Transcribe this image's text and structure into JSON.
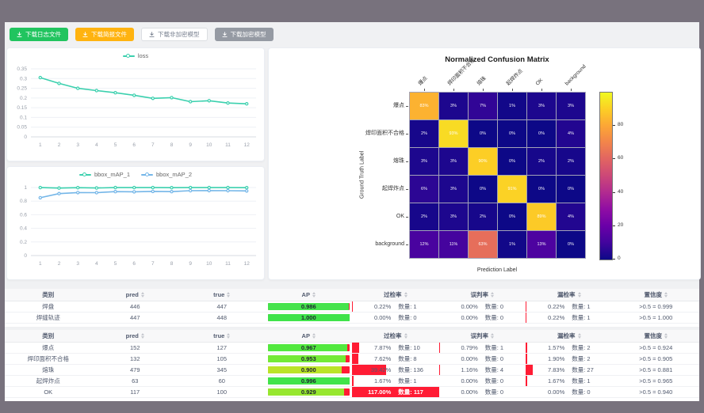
{
  "toolbar": {
    "buttons": [
      {
        "label": "下载日志文件",
        "variant": "green"
      },
      {
        "label": "下载简报文件",
        "variant": "orange"
      },
      {
        "label": "下载非加密模型",
        "variant": "plain"
      },
      {
        "label": "下载加密模型",
        "variant": "gray"
      }
    ]
  },
  "colors": {
    "accent_teal": "#3bd0ae",
    "accent_blue": "#74b6e8",
    "button_green": "#21c45f",
    "button_orange": "#ffb310",
    "bar_red": "#ff1c34",
    "frame_gray": "#78727d"
  },
  "chart_data": [
    {
      "type": "line",
      "legend_position": "top",
      "x": [
        1,
        2,
        3,
        4,
        5,
        6,
        7,
        8,
        9,
        10,
        11,
        12
      ],
      "series": [
        {
          "name": "loss",
          "color": "#3bd0ae",
          "values": [
            0.305,
            0.275,
            0.25,
            0.238,
            0.227,
            0.214,
            0.198,
            0.202,
            0.181,
            0.186,
            0.174,
            0.17
          ]
        }
      ],
      "ylim": [
        0,
        0.35
      ],
      "yticks": [
        0,
        0.05,
        0.1,
        0.15,
        0.2,
        0.25,
        0.3,
        0.35
      ],
      "grid": true
    },
    {
      "type": "line",
      "legend_position": "top",
      "x": [
        1,
        2,
        3,
        4,
        5,
        6,
        7,
        8,
        9,
        10,
        11,
        12
      ],
      "series": [
        {
          "name": "bbox_mAP_1",
          "color": "#3bd0ae",
          "values": [
            0.999,
            0.992,
            0.998,
            0.993,
            0.999,
            0.999,
            0.999,
            0.998,
            0.999,
            0.999,
            0.999,
            0.998
          ]
        },
        {
          "name": "bbox_mAP_2",
          "color": "#74b6e8",
          "values": [
            0.85,
            0.91,
            0.925,
            0.924,
            0.94,
            0.937,
            0.943,
            0.94,
            0.953,
            0.955,
            0.954,
            0.95
          ]
        }
      ],
      "ylim": [
        0,
        1
      ],
      "yticks": [
        0,
        0.2,
        0.4,
        0.6,
        0.8,
        1
      ],
      "grid": true
    },
    {
      "type": "heatmap",
      "title": "Normalized Confusion Matrix",
      "xlabel": "Prediction Label",
      "ylabel": "Ground Truth Label",
      "labels": [
        "爆点",
        "焊印面积不合格",
        "熔珠",
        "起焊炸点",
        "OK",
        "background"
      ],
      "matrix": [
        [
          83,
          3,
          7,
          1,
          3,
          3
        ],
        [
          2,
          93,
          0,
          0,
          0,
          4
        ],
        [
          3,
          3,
          90,
          0,
          2,
          2
        ],
        [
          6,
          3,
          0,
          91,
          0,
          0
        ],
        [
          2,
          3,
          2,
          0,
          89,
          4
        ],
        [
          12,
          11,
          63,
          1,
          13,
          0
        ]
      ],
      "cell_format": "percent",
      "vmin": 0,
      "vmax": 100,
      "colormap": "plasma",
      "colorbar_ticks": [
        0,
        20,
        40,
        60,
        80
      ]
    }
  ],
  "tables": [
    {
      "headers": [
        "类别",
        "pred",
        "true",
        "AP",
        "过检率",
        "误判率",
        "漏检率",
        "置信度"
      ],
      "sortable": [
        false,
        true,
        true,
        true,
        true,
        true,
        true,
        true
      ],
      "rows": [
        {
          "cls": "焊盘",
          "pred": "446",
          "truth": "447",
          "ap": "0.986",
          "ap_val": 0.986,
          "ap_color": "#45e34c",
          "over_pct": "0.22%",
          "over_cnt": "数量: 1",
          "over_val": 0.22,
          "mis_pct": "0.00%",
          "mis_cnt": "数量: 0",
          "mis_val": 0,
          "miss_pct": "0.22%",
          "miss_cnt": "数量: 1",
          "miss_val": 0.22,
          "conf": ">0.5 = 0.999"
        },
        {
          "cls": "焊缝轨迹",
          "pred": "447",
          "truth": "448",
          "ap": "1.000",
          "ap_val": 1.0,
          "ap_color": "#3fe34a",
          "over_pct": "0.00%",
          "over_cnt": "数量: 0",
          "over_val": 0,
          "mis_pct": "0.00%",
          "mis_cnt": "数量: 0",
          "mis_val": 0,
          "miss_pct": "0.22%",
          "miss_cnt": "数量: 1",
          "miss_val": 0.22,
          "conf": ">0.5 = 1.000"
        }
      ]
    },
    {
      "headers": [
        "类别",
        "pred",
        "true",
        "AP",
        "过检率",
        "误判率",
        "漏检率",
        "置信度"
      ],
      "sortable": [
        false,
        true,
        true,
        true,
        true,
        true,
        true,
        true
      ],
      "rows": [
        {
          "cls": "爆点",
          "pred": "152",
          "truth": "127",
          "ap": "0.967",
          "ap_val": 0.967,
          "ap_color": "#52e93e",
          "over_pct": "7.87%",
          "over_cnt": "数量: 10",
          "over_val": 7.87,
          "mis_pct": "0.79%",
          "mis_cnt": "数量: 1",
          "mis_val": 0.79,
          "miss_pct": "1.57%",
          "miss_cnt": "数量: 2",
          "miss_val": 1.57,
          "conf": ">0.5 = 0.924"
        },
        {
          "cls": "焊印面积不合格",
          "pred": "132",
          "truth": "105",
          "ap": "0.953",
          "ap_val": 0.953,
          "ap_color": "#74ea36",
          "over_pct": "7.62%",
          "over_cnt": "数量: 8",
          "over_val": 7.62,
          "mis_pct": "0.00%",
          "mis_cnt": "数量: 0",
          "mis_val": 0,
          "miss_pct": "1.90%",
          "miss_cnt": "数量: 2",
          "miss_val": 1.9,
          "conf": ">0.5 = 0.905"
        },
        {
          "cls": "熔珠",
          "pred": "479",
          "truth": "345",
          "ap": "0.900",
          "ap_val": 0.9,
          "ap_color": "#bbe428",
          "over_pct": "39.42%",
          "over_cnt": "数量: 136",
          "over_val": 39.42,
          "mis_pct": "1.16%",
          "mis_cnt": "数量: 4",
          "mis_val": 1.16,
          "miss_pct": "7.83%",
          "miss_cnt": "数量: 27",
          "miss_val": 7.83,
          "conf": ">0.5 = 0.881"
        },
        {
          "cls": "起焊炸点",
          "pred": "63",
          "truth": "60",
          "ap": "0.996",
          "ap_val": 0.996,
          "ap_color": "#41e44a",
          "over_pct": "1.67%",
          "over_cnt": "数量: 1",
          "over_val": 1.67,
          "mis_pct": "0.00%",
          "mis_cnt": "数量: 0",
          "mis_val": 0,
          "miss_pct": "1.67%",
          "miss_cnt": "数量: 1",
          "miss_val": 1.67,
          "conf": ">0.5 = 0.965"
        },
        {
          "cls": "OK",
          "pred": "117",
          "truth": "100",
          "ap": "0.929",
          "ap_val": 0.929,
          "ap_color": "#97e72f",
          "over_pct": "117.00%",
          "over_cnt": "数量: 117",
          "over_val": 117,
          "mis_pct": "0.00%",
          "mis_cnt": "数量: 0",
          "mis_val": 0,
          "miss_pct": "0.00%",
          "miss_cnt": "数量: 0",
          "miss_val": 0,
          "conf": ">0.5 = 0.940"
        }
      ]
    }
  ]
}
